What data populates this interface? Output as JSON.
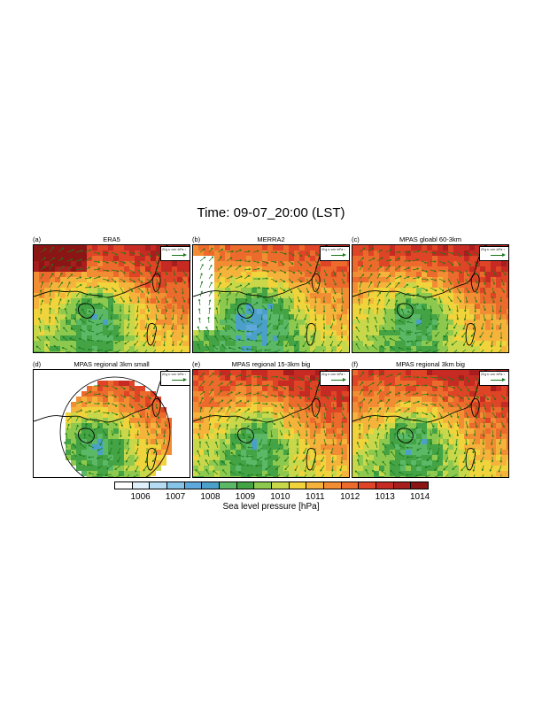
{
  "figure": {
    "title": "Time:   09-07_20:00 (LST)"
  },
  "panels": [
    {
      "label": "(a)",
      "title": "ERA5",
      "ref_vector": "20 g s⁻¹cm⁻¹hPa⁻¹"
    },
    {
      "label": "(b)",
      "title": "MERRA2",
      "ref_vector": "20 g s⁻¹cm⁻¹hPa⁻¹"
    },
    {
      "label": "(c)",
      "title": "MPAS gloabl 60-3km",
      "ref_vector": "20 g s⁻¹cm⁻¹hPa⁻¹"
    },
    {
      "label": "(d)",
      "title": "MPAS regional 3km small",
      "ref_vector": "20 g s⁻¹cm⁻¹hPa⁻¹"
    },
    {
      "label": "(e)",
      "title": "MPAS regional 15-3km big",
      "ref_vector": "20 g s⁻¹cm⁻¹hPa⁻¹"
    },
    {
      "label": "(f)",
      "title": "MPAS regional 3km big",
      "ref_vector": "20 g s⁻¹cm⁻¹hPa⁻¹"
    }
  ],
  "colorbar": {
    "title": "Sea level pressure [hPa]",
    "tick_labels": [
      "1006",
      "1007",
      "1008",
      "1009",
      "1010",
      "1011",
      "1012",
      "1013",
      "1014"
    ],
    "colors": [
      "#ffffff",
      "#dff0fb",
      "#b5dcf3",
      "#88c3e8",
      "#5fa8db",
      "#4aa0c8",
      "#5bb866",
      "#43a345",
      "#8ec94f",
      "#c8d84a",
      "#f1d33c",
      "#f6b33b",
      "#f38d33",
      "#ec6a2c",
      "#df4426",
      "#c62a22",
      "#a81d1d",
      "#8b1515"
    ]
  },
  "colors": {
    "vector": "#1a7a1a",
    "coastline": "#000000"
  }
}
